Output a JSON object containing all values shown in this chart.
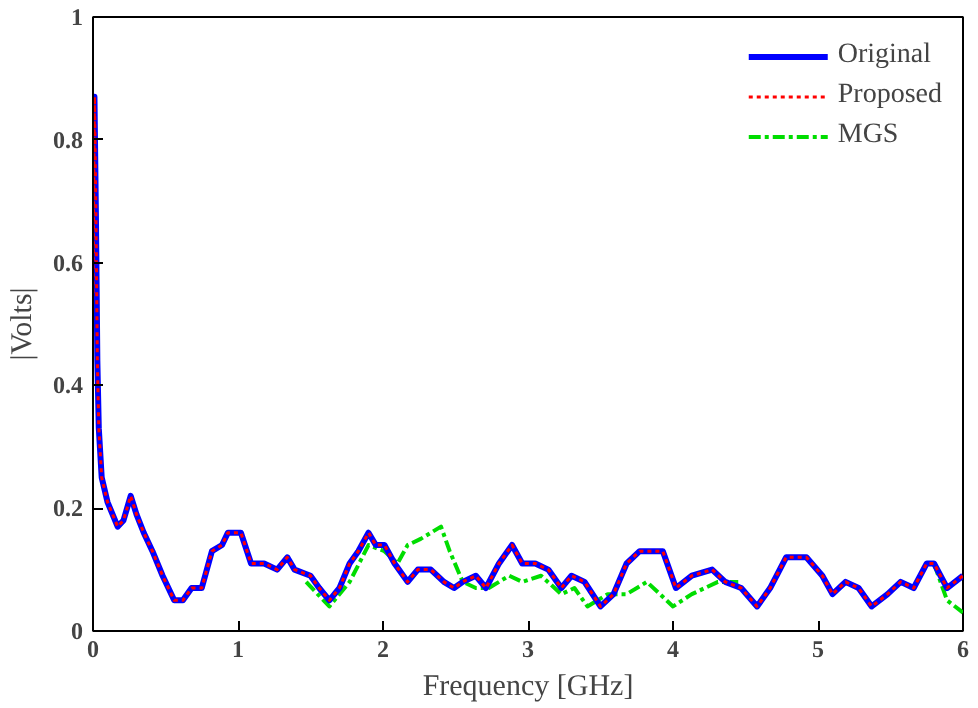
{
  "chart_data": {
    "type": "line",
    "xlabel": "Frequency [GHz]",
    "ylabel": "|Volts|",
    "xlim": [
      0,
      6
    ],
    "ylim": [
      0,
      1
    ],
    "xticks": [
      0,
      1,
      2,
      3,
      4,
      5,
      6
    ],
    "yticks": [
      0,
      0.2,
      0.4,
      0.6,
      0.8,
      1
    ],
    "grid": false,
    "legend": "top right",
    "x": [
      0,
      0.01,
      0.02,
      0.03,
      0.04,
      0.06,
      0.1,
      0.17,
      0.21,
      0.26,
      0.3,
      0.35,
      0.41,
      0.48,
      0.56,
      0.62,
      0.68,
      0.75,
      0.82,
      0.89,
      0.93,
      1.02,
      1.09,
      1.18,
      1.27,
      1.34,
      1.39,
      1.5,
      1.56,
      1.63,
      1.7,
      1.77,
      1.83,
      1.9,
      1.95,
      2.01,
      2.08,
      2.17,
      2.24,
      2.33,
      2.42,
      2.49,
      2.55,
      2.64,
      2.71,
      2.8,
      2.89,
      2.96,
      3.05,
      3.14,
      3.23,
      3.3,
      3.39,
      3.5,
      3.59,
      3.68,
      3.77,
      3.85,
      3.93,
      4.02,
      4.13,
      4.27,
      4.36,
      4.47,
      4.58,
      4.67,
      4.78,
      4.92,
      5.03,
      5.1,
      5.19,
      5.28,
      5.37,
      5.48,
      5.57,
      5.66,
      5.75,
      5.8,
      5.89,
      6.0
    ],
    "series": [
      {
        "name": "Original",
        "color": "#0000ff",
        "line_style": "solid",
        "values": [
          0.55,
          0.87,
          0.68,
          0.44,
          0.33,
          0.25,
          0.21,
          0.17,
          0.18,
          0.22,
          0.19,
          0.16,
          0.13,
          0.09,
          0.05,
          0.05,
          0.07,
          0.07,
          0.13,
          0.14,
          0.16,
          0.16,
          0.11,
          0.11,
          0.1,
          0.12,
          0.1,
          0.09,
          0.07,
          0.05,
          0.07,
          0.11,
          0.13,
          0.16,
          0.14,
          0.14,
          0.11,
          0.08,
          0.1,
          0.1,
          0.08,
          0.07,
          0.08,
          0.09,
          0.07,
          0.11,
          0.14,
          0.11,
          0.11,
          0.1,
          0.07,
          0.09,
          0.08,
          0.04,
          0.06,
          0.11,
          0.13,
          0.13,
          0.13,
          0.07,
          0.09,
          0.1,
          0.08,
          0.07,
          0.04,
          0.07,
          0.12,
          0.12,
          0.09,
          0.06,
          0.08,
          0.07,
          0.04,
          0.06,
          0.08,
          0.07,
          0.11,
          0.11,
          0.07,
          0.09
        ]
      },
      {
        "name": "Proposed",
        "color": "#ff0000",
        "line_style": "dotted",
        "values": [
          0.55,
          0.87,
          0.68,
          0.44,
          0.33,
          0.25,
          0.21,
          0.17,
          0.18,
          0.22,
          0.19,
          0.16,
          0.13,
          0.09,
          0.05,
          0.05,
          0.07,
          0.07,
          0.13,
          0.14,
          0.16,
          0.16,
          0.11,
          0.11,
          0.1,
          0.12,
          0.1,
          0.09,
          0.07,
          0.05,
          0.07,
          0.11,
          0.13,
          0.16,
          0.14,
          0.14,
          0.11,
          0.08,
          0.1,
          0.1,
          0.08,
          0.07,
          0.08,
          0.09,
          0.07,
          0.11,
          0.14,
          0.11,
          0.11,
          0.1,
          0.07,
          0.09,
          0.08,
          0.04,
          0.06,
          0.11,
          0.13,
          0.13,
          0.13,
          0.07,
          0.09,
          0.1,
          0.08,
          0.07,
          0.04,
          0.07,
          0.12,
          0.12,
          0.09,
          0.06,
          0.08,
          0.07,
          0.04,
          0.06,
          0.08,
          0.07,
          0.11,
          0.11,
          0.07,
          0.09
        ]
      },
      {
        "name": "MGS",
        "color": "#00dd00",
        "line_style": "dashdot",
        "x": [
          1.47,
          1.63,
          1.77,
          1.9,
          2.01,
          2.1,
          2.17,
          2.26,
          2.4,
          2.46,
          2.55,
          2.64,
          2.73,
          2.87,
          2.96,
          3.09,
          3.23,
          3.32,
          3.41,
          3.55,
          3.68,
          3.82,
          4.0,
          4.13,
          4.31,
          4.45,
          5.1,
          5.8,
          5.89,
          6.0
        ],
        "values": [
          0.08,
          0.04,
          0.08,
          0.14,
          0.13,
          0.11,
          0.14,
          0.15,
          0.17,
          0.13,
          0.08,
          0.07,
          0.07,
          0.09,
          0.08,
          0.09,
          0.06,
          0.07,
          0.04,
          0.06,
          0.06,
          0.08,
          0.04,
          0.06,
          0.08,
          0.08,
          null,
          0.11,
          0.05,
          0.03
        ]
      }
    ]
  }
}
